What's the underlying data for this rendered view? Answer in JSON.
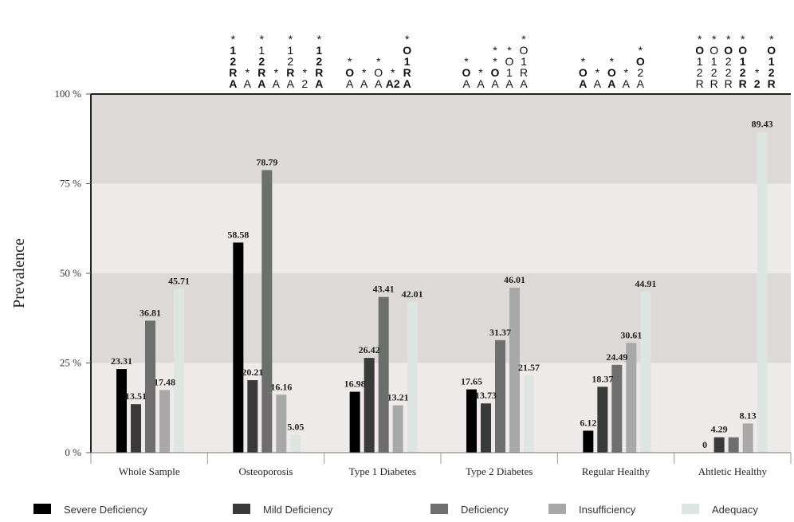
{
  "chart_data": {
    "type": "bar",
    "ylabel": "Prevalence",
    "ylim": [
      0,
      100
    ],
    "yticks": [
      {
        "value": 0,
        "label": "0 %"
      },
      {
        "value": 25,
        "label": "25 %"
      },
      {
        "value": 50,
        "label": "50 %"
      },
      {
        "value": 75,
        "label": "75 %"
      },
      {
        "value": 100,
        "label": "100 %"
      }
    ],
    "categories": [
      "Whole Sample",
      "Osteoporosis",
      "Type 1 Diabetes",
      "Type 2 Diabetes",
      "Regular Healthy",
      "Ahtletic Healthy"
    ],
    "series": [
      {
        "name": "Severe Deficiency",
        "color": "#000000",
        "values": [
          23.31,
          58.58,
          16.98,
          17.65,
          6.12,
          0
        ],
        "labels": [
          "23.31",
          "58.58",
          "16.98",
          "17.65",
          "6.12",
          "0"
        ]
      },
      {
        "name": "Mild Deficiency",
        "color": "#3a3a3a",
        "values": [
          13.51,
          20.21,
          26.42,
          13.73,
          18.37,
          4.29
        ],
        "labels": [
          "13.51",
          "20.21",
          "26.42",
          "13.73",
          "18.37",
          "4.29"
        ]
      },
      {
        "name": "Deficiency",
        "color": "#6e6e6e",
        "values": [
          36.81,
          78.79,
          43.41,
          31.37,
          24.49,
          4.29
        ],
        "labels": [
          "36.81",
          "78.79",
          "43.41",
          "31.37",
          "24.49",
          ""
        ]
      },
      {
        "name": "Insufficiency",
        "color": "#a8a8a8",
        "values": [
          17.48,
          16.16,
          13.21,
          46.01,
          30.61,
          8.13
        ],
        "labels": [
          "17.48",
          "16.16",
          "13.21",
          "46.01",
          "30.61",
          "8.13"
        ]
      },
      {
        "name": "Adequacy",
        "color": "#dde5e2",
        "values": [
          45.71,
          5.05,
          42.01,
          21.57,
          44.91,
          89.43
        ],
        "labels": [
          "45.71",
          "5.05",
          "42.01",
          "21.57",
          "44.91",
          "89.43"
        ]
      }
    ],
    "background_bands": [
      "#ddd9d8",
      "#eeeaea",
      "#ddd9d8",
      "#eeeaea"
    ],
    "legend_position": "bottom",
    "significance_markers": [
      [
        [
          "*",
          "1b",
          "2b",
          "Rb",
          "Ab"
        ],
        [
          "*",
          "A"
        ],
        [
          "*",
          "1",
          "2b",
          "Rb",
          "Ab"
        ],
        [
          "*",
          "A"
        ],
        [
          "*",
          "1",
          "2",
          "Rb",
          "A"
        ],
        [
          "*",
          "2"
        ],
        [
          "*",
          "1b",
          "2b",
          "Rb",
          "Ab"
        ]
      ],
      [
        [
          "*",
          "Ob",
          "A"
        ],
        [
          "*",
          "A"
        ],
        [
          "*",
          "O",
          "A"
        ],
        [
          "*",
          "A2b"
        ],
        [
          "*",
          "Ob",
          "1b",
          "Rb",
          "Ab"
        ]
      ],
      [
        [
          "*",
          "Ob",
          "A"
        ],
        [
          "*",
          "A"
        ],
        [
          "*",
          "*",
          "Ob",
          "A"
        ],
        [
          "*",
          "O",
          "1",
          "A"
        ],
        [
          "*",
          "O",
          "1",
          "R",
          "A"
        ]
      ],
      [
        [
          "*",
          "Ob",
          "Ab"
        ],
        [
          "*",
          "A"
        ],
        [
          "*",
          "Ob",
          "Ab"
        ],
        [
          "*",
          "A"
        ],
        [
          "*",
          "Ob",
          "2",
          "A"
        ]
      ],
      [
        [
          "*",
          "Ob",
          "1",
          "2",
          "R"
        ],
        [
          "*",
          "O",
          "1",
          "2",
          "R"
        ],
        [
          "*",
          "Ob",
          "2",
          "2",
          "R"
        ],
        [
          "*",
          "Ob",
          "1b",
          "2b",
          "Rb"
        ],
        [
          "*",
          "2b"
        ],
        [
          "*",
          "Ob",
          "1b",
          "2b",
          "Rb"
        ]
      ]
    ]
  }
}
